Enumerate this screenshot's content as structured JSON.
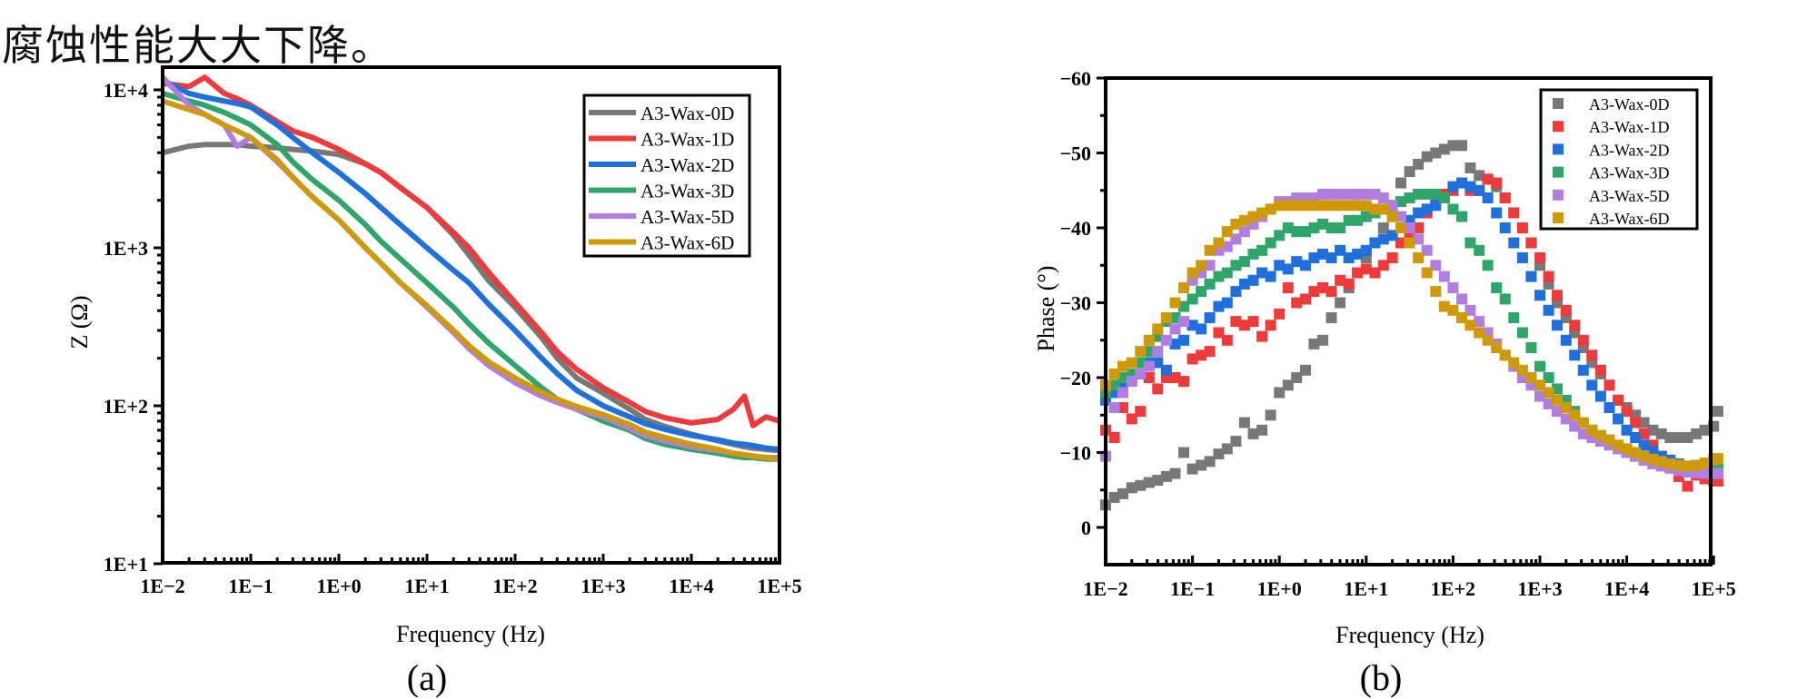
{
  "caption": "腐蚀性能大大下降。",
  "colors": {
    "A3-Wax-0D": "#787878",
    "A3-Wax-1D": "#ee3a3a",
    "A3-Wax-2D": "#1f6fdd",
    "A3-Wax-3D": "#2fa56a",
    "A3-Wax-5D": "#b07ee0",
    "A3-Wax-6D": "#cf9a0a"
  },
  "chart_data": [
    {
      "id": "a",
      "type": "line",
      "panel_label": "(a)",
      "title": "",
      "xlabel": "Frequency (Hz)",
      "ylabel": "Z (Ω)",
      "xscale": "log",
      "yscale": "log",
      "xlim": [
        0.01,
        120000
      ],
      "ylim": [
        10,
        14000
      ],
      "xticks": [
        "1E−2",
        "1E−1",
        "1E+0",
        "1E+1",
        "1E+2",
        "1E+3",
        "1E+4",
        "1E+5"
      ],
      "yticks": [
        "1E+1",
        "1E+2",
        "1E+3",
        "1E+4"
      ],
      "grid": false,
      "legend_position": "top-right",
      "x": [
        0.01,
        0.02,
        0.03,
        0.05,
        0.07,
        0.1,
        0.2,
        0.3,
        0.5,
        1,
        2,
        3,
        5,
        10,
        20,
        30,
        50,
        100,
        200,
        300,
        500,
        1000,
        2000,
        3000,
        5000,
        10000,
        20000,
        30000,
        40000,
        50000,
        70000,
        100000,
        120000
      ],
      "series": [
        {
          "name": "A3-Wax-0D",
          "values": [
            4000,
            4400,
            4500,
            4500,
            4500,
            4400,
            4300,
            4200,
            4100,
            3900,
            3400,
            3000,
            2400,
            1800,
            1200,
            900,
            620,
            420,
            270,
            200,
            150,
            120,
            95,
            82,
            74,
            66,
            60,
            57,
            55,
            54,
            53,
            52,
            51
          ]
        },
        {
          "name": "A3-Wax-1D",
          "values": [
            11000,
            10500,
            12000,
            9500,
            8800,
            8000,
            6300,
            5500,
            5000,
            4200,
            3400,
            3000,
            2400,
            1800,
            1250,
            1000,
            700,
            450,
            290,
            220,
            170,
            130,
            105,
            92,
            84,
            78,
            82,
            95,
            115,
            75,
            85,
            80,
            105
          ]
        },
        {
          "name": "A3-Wax-2D",
          "values": [
            11500,
            9500,
            9000,
            8500,
            8200,
            7800,
            6000,
            5000,
            4000,
            3000,
            2200,
            1800,
            1400,
            1000,
            720,
            600,
            440,
            300,
            200,
            160,
            125,
            100,
            85,
            77,
            71,
            65,
            61,
            58,
            57,
            56,
            54,
            53,
            52
          ]
        },
        {
          "name": "A3-Wax-3D",
          "values": [
            9500,
            8500,
            8000,
            7200,
            6600,
            6000,
            4500,
            3500,
            2700,
            2000,
            1400,
            1100,
            850,
            600,
            420,
            330,
            250,
            180,
            130,
            110,
            95,
            80,
            70,
            62,
            57,
            53,
            50,
            48,
            47,
            47,
            46,
            46,
            45
          ]
        },
        {
          "name": "A3-Wax-5D",
          "values": [
            12000,
            8000,
            7000,
            6000,
            4400,
            5000,
            3500,
            2800,
            2100,
            1500,
            1000,
            800,
            600,
            420,
            290,
            230,
            180,
            140,
            115,
            105,
            95,
            85,
            72,
            65,
            60,
            55,
            52,
            50,
            49,
            48,
            47,
            47,
            46
          ]
        },
        {
          "name": "A3-Wax-6D",
          "values": [
            8500,
            7500,
            7000,
            6000,
            5500,
            5000,
            3600,
            2800,
            2100,
            1500,
            1000,
            800,
            600,
            430,
            300,
            240,
            190,
            150,
            122,
            110,
            99,
            88,
            76,
            68,
            63,
            57,
            53,
            50,
            49,
            48,
            47,
            46,
            46
          ]
        }
      ]
    },
    {
      "id": "b",
      "type": "scatter",
      "panel_label": "(b)",
      "title": "",
      "xlabel": "Frequency (Hz)",
      "ylabel": "Phase (°)",
      "xscale": "log",
      "yscale": "linear",
      "y_inverted": true,
      "xlim": [
        0.01,
        120000
      ],
      "ylim": [
        5,
        -60
      ],
      "xticks": [
        "1E−2",
        "1E−1",
        "1E+0",
        "1E+1",
        "1E+2",
        "1E+3",
        "1E+4",
        "1E+5"
      ],
      "yticks": [
        "−60",
        "−50",
        "−40",
        "−30",
        "−20",
        "−10",
        "0"
      ],
      "grid": false,
      "legend_position": "top-right",
      "x": [
        0.01,
        0.0126,
        0.0158,
        0.02,
        0.0251,
        0.0316,
        0.0398,
        0.0501,
        0.0631,
        0.0794,
        0.1,
        0.126,
        0.158,
        0.2,
        0.251,
        0.316,
        0.398,
        0.501,
        0.631,
        0.794,
        1,
        1.26,
        1.58,
        2,
        2.51,
        3.16,
        3.98,
        5.01,
        6.31,
        7.94,
        10,
        12.6,
        15.8,
        20,
        25.1,
        31.6,
        39.8,
        50.1,
        63.1,
        79.4,
        100,
        126,
        158,
        200,
        251,
        316,
        398,
        501,
        631,
        794,
        1000,
        1260,
        1580,
        2000,
        2510,
        3160,
        3980,
        5010,
        6310,
        7940,
        10000,
        12600,
        15800,
        20000,
        25100,
        31600,
        39800,
        50100,
        63100,
        79400,
        100000,
        112000
      ],
      "series": [
        {
          "name": "A3-Wax-0D",
          "values": [
            -3,
            -4,
            -4.5,
            -5.3,
            -5.6,
            -6,
            -6.3,
            -6.8,
            -7.2,
            -10,
            -7.8,
            -8.3,
            -8.8,
            -9.8,
            -10.5,
            -11.5,
            -14,
            -12.5,
            -13,
            -15,
            -18,
            -19,
            -20,
            -21,
            -24.5,
            -25,
            -28,
            -30,
            -32,
            -34,
            -36,
            -38,
            -40,
            -41.5,
            -46,
            -47.5,
            -48.5,
            -49.5,
            -50,
            -50.5,
            -51,
            -51,
            -48,
            -47,
            -46.5,
            -45.5,
            -44,
            -42,
            -40,
            -38,
            -35,
            -32.5,
            -30,
            -28,
            -26,
            -24,
            -22,
            -20.5,
            -19,
            -17,
            -16,
            -15,
            -14,
            -13,
            -12.5,
            -12,
            -12,
            -12,
            -12.5,
            -13,
            -13.5,
            -15.5
          ]
        },
        {
          "name": "A3-Wax-1D",
          "values": [
            -13,
            -12,
            -16,
            -14.5,
            -15.5,
            -20,
            -18.5,
            -20,
            -20,
            -19.5,
            -22.5,
            -23,
            -23.5,
            -26,
            -25,
            -27.5,
            -27,
            -27.5,
            -25.5,
            -27,
            -28.5,
            -32,
            -30,
            -30.5,
            -31.5,
            -32,
            -31.5,
            -33,
            -32.5,
            -34,
            -34.5,
            -34,
            -35,
            -36,
            -38,
            -39,
            -40,
            -42,
            -43.5,
            -44.5,
            -45,
            -46,
            -45,
            -45,
            -46.5,
            -46,
            -44,
            -42,
            -40,
            -38,
            -36,
            -33.5,
            -31,
            -29,
            -27,
            -25,
            -23,
            -21,
            -19,
            -17,
            -15.5,
            -14,
            -12.5,
            -11,
            -9.5,
            -8.5,
            -6.8,
            -5.5,
            -7,
            -6.5,
            -6.3,
            -6.2
          ]
        },
        {
          "name": "A3-Wax-2D",
          "values": [
            -17,
            -18,
            -19,
            -20,
            -20.5,
            -22,
            -22,
            -21,
            -24.5,
            -25,
            -27,
            -26.5,
            -28,
            -29.5,
            -30,
            -31.5,
            -32.5,
            -33,
            -34,
            -33.5,
            -35,
            -34.5,
            -35.5,
            -35,
            -36,
            -36.5,
            -36,
            -37,
            -36,
            -36.5,
            -37,
            -38,
            -38.5,
            -39,
            -40,
            -41,
            -42,
            -42.5,
            -43,
            -44,
            -45.5,
            -46,
            -45.5,
            -45,
            -44,
            -42,
            -40,
            -38,
            -36,
            -33.5,
            -31,
            -29,
            -27,
            -25,
            -23,
            -21,
            -19,
            -17.5,
            -16,
            -14.5,
            -13,
            -12,
            -11,
            -10.2,
            -9.5,
            -9,
            -8.5,
            -8.2,
            -8,
            -7.8,
            -7.8,
            -7.7
          ]
        },
        {
          "name": "A3-Wax-3D",
          "values": [
            -18,
            -19,
            -20,
            -20.5,
            -22,
            -23.5,
            -25.5,
            -27.5,
            -28,
            -29.5,
            -30.5,
            -31.5,
            -32.5,
            -33.5,
            -34,
            -35,
            -35.5,
            -36.5,
            -37,
            -38,
            -39,
            -40,
            -39.5,
            -39.5,
            -40,
            -40.5,
            -40,
            -40,
            -41,
            -41,
            -41.5,
            -42,
            -42.5,
            -43,
            -43.5,
            -44,
            -44.5,
            -44.5,
            -44.5,
            -44,
            -42.5,
            -41.5,
            -38,
            -37,
            -35,
            -32,
            -30.5,
            -28,
            -26,
            -24,
            -21.5,
            -20,
            -18.5,
            -17,
            -15.5,
            -14,
            -13,
            -12,
            -11.3,
            -10.5,
            -10,
            -9.5,
            -9,
            -8.7,
            -8.5,
            -8.3,
            -8.1,
            -8,
            -8,
            -8,
            -8,
            -8
          ]
        },
        {
          "name": "A3-Wax-5D",
          "values": [
            -9.5,
            -16,
            -18,
            -19.5,
            -20.5,
            -21.5,
            -23.5,
            -25,
            -26.5,
            -27.5,
            -33,
            -34,
            -35,
            -37,
            -37.5,
            -38.5,
            -39.5,
            -40.5,
            -41.5,
            -42.5,
            -43.5,
            -43.5,
            -44,
            -44,
            -44,
            -44.5,
            -44.5,
            -44.5,
            -44.5,
            -44.5,
            -44.5,
            -44.5,
            -44,
            -43,
            -41.5,
            -40,
            -38.5,
            -37,
            -35,
            -33.5,
            -32,
            -30.5,
            -29,
            -27.5,
            -26,
            -24.5,
            -23,
            -21.5,
            -20,
            -19,
            -17.5,
            -16.5,
            -15.5,
            -14.5,
            -13.5,
            -12.5,
            -12,
            -11.5,
            -11,
            -10.5,
            -10,
            -9.5,
            -9,
            -8.5,
            -8.2,
            -7.9,
            -7.6,
            -7.4,
            -7.3,
            -7.2,
            -7.2,
            -7.2
          ]
        },
        {
          "name": "A3-Wax-6D",
          "values": [
            -19,
            -20.5,
            -21.5,
            -22,
            -23.5,
            -25,
            -26.5,
            -28,
            -30,
            -32,
            -34,
            -35,
            -37,
            -38,
            -39.5,
            -40.5,
            -41,
            -41.5,
            -42,
            -42.5,
            -43,
            -43,
            -43,
            -43,
            -43,
            -43,
            -43,
            -43,
            -43,
            -43,
            -43,
            -42.5,
            -42.5,
            -41.5,
            -40,
            -38,
            -36,
            -34,
            -31.5,
            -29.5,
            -29,
            -28,
            -27,
            -26,
            -25,
            -24,
            -23,
            -22,
            -21,
            -20,
            -19,
            -18,
            -17,
            -16,
            -15,
            -14,
            -13,
            -12.3,
            -11.7,
            -11,
            -10.5,
            -10,
            -9.5,
            -9.1,
            -8.8,
            -8.5,
            -8.3,
            -8.2,
            -8.3,
            -8.6,
            -9,
            -9.2
          ]
        }
      ]
    }
  ]
}
